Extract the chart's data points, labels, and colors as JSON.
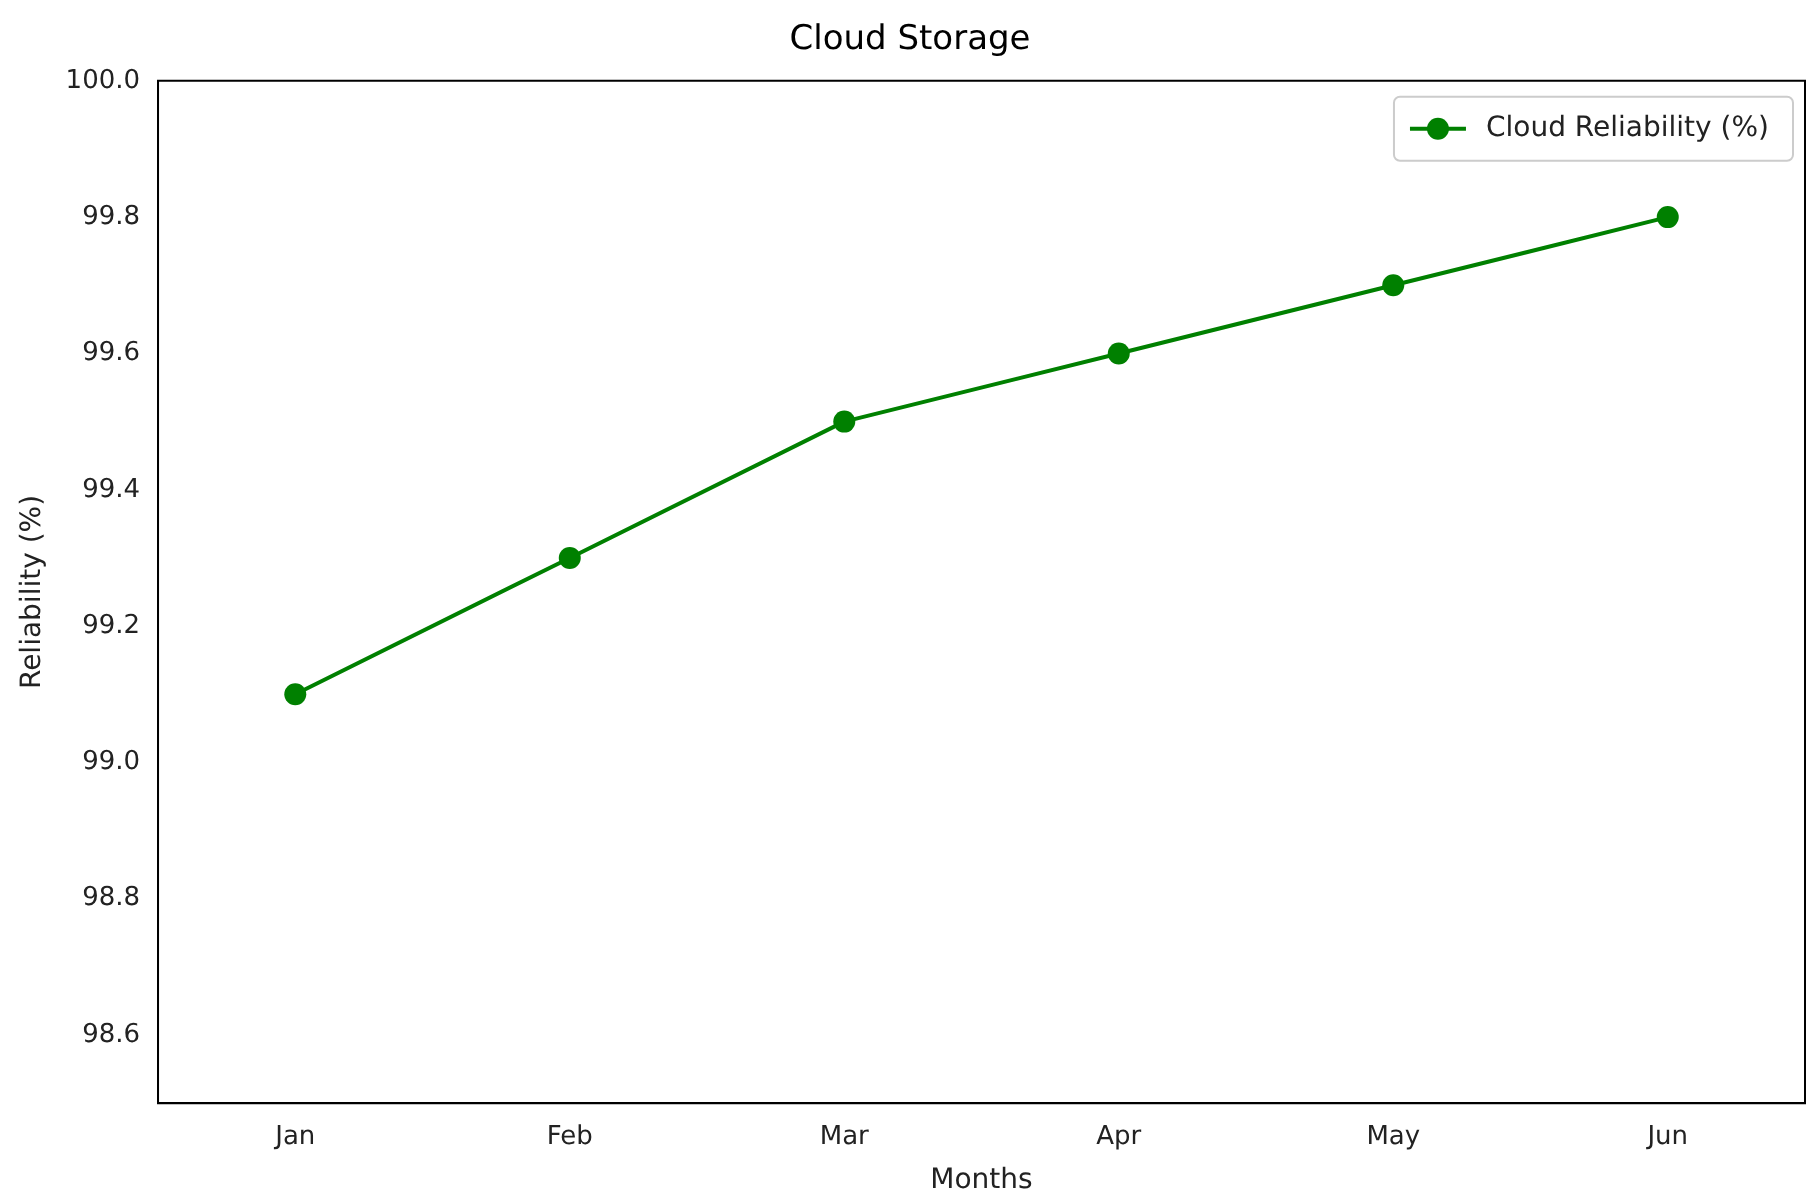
{
  "chart_data": {
    "type": "line",
    "title": "Cloud Storage",
    "xlabel": "Months",
    "ylabel": "Reliability (%)",
    "categories": [
      "Jan",
      "Feb",
      "Mar",
      "Apr",
      "May",
      "Jun"
    ],
    "series": [
      {
        "name": "Cloud Reliability (%)",
        "color": "#008000",
        "values": [
          99.1,
          99.3,
          99.5,
          99.6,
          99.7,
          99.8
        ]
      }
    ],
    "ylim": [
      98.5,
      100.0
    ],
    "yticks": [
      {
        "value": 98.6,
        "label": "98.6"
      },
      {
        "value": 98.8,
        "label": "98.8"
      },
      {
        "value": 99.0,
        "label": "99.0"
      },
      {
        "value": 99.2,
        "label": "99.2"
      },
      {
        "value": 99.4,
        "label": "99.4"
      },
      {
        "value": 99.6,
        "label": "99.6"
      },
      {
        "value": 99.8,
        "label": "99.8"
      },
      {
        "value": 100.0,
        "label": "100.0"
      }
    ],
    "grid": false,
    "legend": "top right",
    "marker": "circle",
    "line_style": "solid"
  }
}
